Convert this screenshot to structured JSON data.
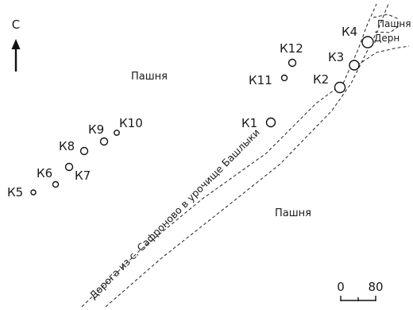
{
  "north": {
    "label": "С"
  },
  "fields": [
    {
      "label": "Пашня"
    },
    {
      "label": "Пашня"
    },
    {
      "label": "Пашня"
    }
  ],
  "sod": {
    "label": "Дерн"
  },
  "road": {
    "label": "Дорога из с. Сафроново в урочище Башлыки"
  },
  "kurgans": [
    {
      "id": "K1",
      "label": "К1"
    },
    {
      "id": "K2",
      "label": "К2"
    },
    {
      "id": "K3",
      "label": "К3"
    },
    {
      "id": "K4",
      "label": "К4"
    },
    {
      "id": "K5",
      "label": "К5"
    },
    {
      "id": "K6",
      "label": "К6"
    },
    {
      "id": "K7",
      "label": "К7"
    },
    {
      "id": "K8",
      "label": "К8"
    },
    {
      "id": "K9",
      "label": "К9"
    },
    {
      "id": "K10",
      "label": "К10"
    },
    {
      "id": "K11",
      "label": "К11"
    },
    {
      "id": "K12",
      "label": "К12"
    }
  ],
  "scale": {
    "tick_start": "0",
    "tick_end": "80"
  }
}
